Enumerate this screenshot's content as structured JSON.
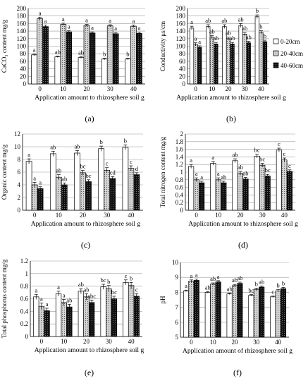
{
  "colors": {
    "background": "#ffffff",
    "bar_stroke": "#000000",
    "series_fill": [
      "#ffffff",
      "#bdbdbd",
      "#111111"
    ]
  },
  "series_names": [
    "0-20cm",
    "20-40cm",
    "40-60cm"
  ],
  "chart_data": [
    {
      "panel_label": "(a)",
      "type": "bar",
      "categories": [
        "0",
        "10",
        "20",
        "30",
        "40"
      ],
      "xlabel": "Application amount to rhizosphere soil  g",
      "ylabel": "CaCO₃ content mg/g",
      "ylim": [
        0,
        200
      ],
      "yticks": [
        "0",
        "20",
        "40",
        "60",
        "80",
        "100",
        "120",
        "140",
        "160",
        "180",
        "200"
      ],
      "grid": true,
      "legend": "none",
      "series": [
        {
          "name": "0-20cm",
          "values": [
            77,
            72,
            70,
            66,
            66
          ],
          "errors": [
            2,
            2,
            2,
            2,
            2
          ],
          "letters": [
            "a",
            "ab",
            "ab",
            "b",
            "b"
          ]
        },
        {
          "name": "20-40cm",
          "values": [
            173,
            158,
            155,
            154,
            153
          ],
          "errors": [
            4,
            3,
            3,
            3,
            3
          ],
          "letters": [
            "a",
            "a",
            "a",
            "a",
            "a"
          ]
        },
        {
          "name": "40-60cm",
          "values": [
            152,
            138,
            135,
            133,
            134
          ],
          "errors": [
            4,
            3,
            3,
            3,
            3
          ],
          "letters": [
            "a",
            "a",
            "a",
            "a",
            "a"
          ]
        }
      ]
    },
    {
      "panel_label": "(b)",
      "type": "bar",
      "categories": [
        "0",
        "10",
        "20",
        "30",
        "40"
      ],
      "xlabel": "Application amount to rhizosphere soil  g",
      "ylabel": "Conductivity μs/cm",
      "ylim": [
        0,
        200
      ],
      "yticks": [
        "0",
        "20",
        "40",
        "60",
        "80",
        "100",
        "120",
        "140",
        "160",
        "180",
        "200"
      ],
      "grid": true,
      "legend": "right",
      "series": [
        {
          "name": "0-20cm",
          "values": [
            148,
            152,
            152,
            155,
            178
          ],
          "errors": [
            5,
            5,
            5,
            5,
            5
          ],
          "letters": [
            "a",
            "ab",
            "ab",
            "ab",
            "b"
          ]
        },
        {
          "name": "20-40cm",
          "values": [
            105,
            124,
            120,
            132,
            137
          ],
          "errors": [
            4,
            4,
            4,
            4,
            4
          ],
          "letters": [
            "a",
            "ab",
            "ab",
            "ab",
            "b"
          ]
        },
        {
          "name": "40-60cm",
          "values": [
            97,
            106,
            106,
            109,
            112
          ],
          "errors": [
            4,
            4,
            4,
            4,
            4
          ],
          "letters": [
            "a",
            "ab",
            "ab",
            "ab",
            "b"
          ]
        }
      ]
    },
    {
      "panel_label": "(c)",
      "type": "bar",
      "categories": [
        "0",
        "10",
        "20",
        "30",
        "40"
      ],
      "xlabel": "Application amount to rhizosphere soil  g",
      "ylabel": "Organic content mg/g",
      "ylim": [
        0,
        12
      ],
      "yticks": [
        "0",
        "2",
        "4",
        "6",
        "8",
        "10",
        "12"
      ],
      "grid": true,
      "legend": "none",
      "series": [
        {
          "name": "0-20cm",
          "values": [
            7.7,
            8.9,
            9.0,
            9.7,
            9.9
          ],
          "errors": [
            0.4,
            0.4,
            0.4,
            0.4,
            0.4
          ],
          "letters": [
            "a",
            "ab",
            "ab",
            "b",
            "b"
          ]
        },
        {
          "name": "20-40cm",
          "values": [
            4.0,
            5.2,
            5.9,
            6.3,
            6.6
          ],
          "errors": [
            0.4,
            0.4,
            0.4,
            0.4,
            0.4
          ],
          "letters": [
            "a",
            "ab",
            "bc",
            "c",
            "c"
          ]
        },
        {
          "name": "40-60cm",
          "values": [
            3.4,
            4.0,
            4.5,
            5.0,
            5.6
          ],
          "errors": [
            0.3,
            0.3,
            0.3,
            0.3,
            0.3
          ],
          "letters": [
            "a",
            "ab",
            "bc",
            "cd",
            "d"
          ]
        }
      ]
    },
    {
      "panel_label": "(d)",
      "type": "bar",
      "categories": [
        "0",
        "10",
        "20",
        "30",
        "40"
      ],
      "xlabel": "Application amount to rhizosphere soil  g",
      "ylabel": "Total nitrogen content mg/g",
      "ylim": [
        0,
        2
      ],
      "yticks": [
        "0",
        "0.2",
        "0.4",
        "0.6",
        "0.8",
        "1",
        "1.2",
        "1.4",
        "1.6",
        "1.8",
        "2"
      ],
      "grid": true,
      "legend": "none",
      "series": [
        {
          "name": "0-20cm",
          "values": [
            1.15,
            1.23,
            1.3,
            1.42,
            1.58
          ],
          "errors": [
            0.05,
            0.05,
            0.05,
            0.05,
            0.05
          ],
          "letters": [
            "a",
            "a",
            "ab",
            "bc",
            "c"
          ]
        },
        {
          "name": "20-40cm",
          "values": [
            0.8,
            0.8,
            0.97,
            1.18,
            1.32
          ],
          "errors": [
            0.05,
            0.05,
            0.05,
            0.05,
            0.05
          ],
          "letters": [
            "a",
            "a",
            "ab",
            "bc",
            "c"
          ]
        },
        {
          "name": "40-60cm",
          "values": [
            0.72,
            0.72,
            0.82,
            0.9,
            1.02
          ],
          "errors": [
            0.04,
            0.04,
            0.04,
            0.04,
            0.04
          ],
          "letters": [
            "a",
            "ab",
            "ab",
            "bc",
            "c"
          ]
        }
      ]
    },
    {
      "panel_label": "(e)",
      "type": "bar",
      "categories": [
        "0",
        "10",
        "20",
        "30",
        "40"
      ],
      "xlabel": "Application amount to rhizosphere soil  g",
      "ylabel": "Total phosphorus content mg/g",
      "ylim": [
        0,
        1.2
      ],
      "yticks": [
        "0",
        "0.2",
        "0.4",
        "0.6",
        "0.8",
        "1",
        "1.2"
      ],
      "grid": true,
      "legend": "none",
      "series": [
        {
          "name": "0-20cm",
          "values": [
            0.63,
            0.68,
            0.72,
            0.79,
            0.86
          ],
          "errors": [
            0.04,
            0.04,
            0.04,
            0.04,
            0.04
          ],
          "letters": [
            "a",
            "a",
            "ab",
            "bc",
            "c"
          ]
        },
        {
          "name": "20-40cm",
          "values": [
            0.48,
            0.54,
            0.63,
            0.76,
            0.81
          ],
          "errors": [
            0.05,
            0.05,
            0.05,
            0.05,
            0.05
          ],
          "letters": [
            "a",
            "a",
            "ab",
            "b",
            "b"
          ]
        },
        {
          "name": "40-60cm",
          "values": [
            0.41,
            0.47,
            0.54,
            0.6,
            0.64
          ],
          "errors": [
            0.04,
            0.04,
            0.04,
            0.04,
            0.04
          ],
          "letters": [
            "a",
            "ab",
            "abc",
            "bc",
            "c"
          ]
        }
      ]
    },
    {
      "panel_label": "(f)",
      "type": "bar",
      "categories": [
        "0",
        "10",
        "20",
        "30",
        "40"
      ],
      "xlabel": "Application amount of rhizosphere soil  g",
      "ylabel": "pH",
      "ylim": [
        5,
        10
      ],
      "yticks": [
        "5",
        "6",
        "7",
        "8",
        "9",
        "10"
      ],
      "grid": true,
      "legend": "none",
      "series": [
        {
          "name": "0-20cm",
          "values": [
            8.1,
            8.0,
            7.9,
            7.8,
            7.7
          ],
          "errors": [
            0.05,
            0.05,
            0.05,
            0.05,
            0.05
          ],
          "letters": [
            "a",
            "ab",
            "ab",
            "bc",
            "c"
          ]
        },
        {
          "name": "20-40cm",
          "values": [
            8.75,
            8.55,
            8.45,
            8.2,
            8.1
          ],
          "errors": [
            0.08,
            0.08,
            0.08,
            0.08,
            0.08
          ],
          "letters": [
            "a",
            "ab",
            "ab",
            "b",
            "b"
          ]
        },
        {
          "name": "40-60cm",
          "values": [
            8.8,
            8.7,
            8.6,
            8.35,
            8.25
          ],
          "errors": [
            0.08,
            0.08,
            0.08,
            0.08,
            0.08
          ],
          "letters": [
            "a",
            "a",
            "ab",
            "ab",
            "b"
          ]
        }
      ]
    }
  ]
}
